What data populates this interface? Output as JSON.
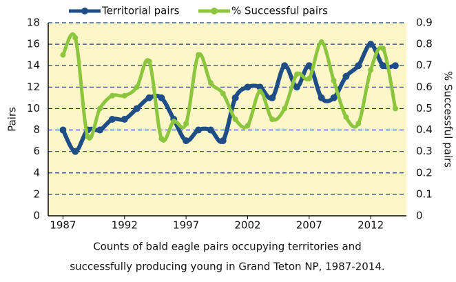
{
  "chart_data": {
    "type": "line",
    "x": [
      1987,
      1988,
      1989,
      1990,
      1991,
      1992,
      1993,
      1994,
      1995,
      1996,
      1997,
      1998,
      1999,
      2000,
      2001,
      2002,
      2003,
      2004,
      2005,
      2006,
      2007,
      2008,
      2009,
      2010,
      2011,
      2012,
      2013,
      2014
    ],
    "series": [
      {
        "name": "Territorial pairs",
        "color": "#1f4e86",
        "values": [
          8,
          6,
          8,
          8,
          9,
          9,
          10,
          11,
          11,
          9,
          7,
          8,
          8,
          7,
          11,
          12,
          12,
          11,
          14,
          12,
          14,
          11,
          11,
          13,
          14,
          16,
          14,
          14
        ]
      },
      {
        "name": "% Successful pairs",
        "color": "#8cc63f",
        "axis": "y2",
        "values": [
          0.75,
          0.83,
          0.37,
          0.5,
          0.56,
          0.56,
          0.6,
          0.72,
          0.36,
          0.44,
          0.43,
          0.75,
          0.62,
          0.57,
          0.45,
          0.42,
          0.58,
          0.45,
          0.5,
          0.66,
          0.64,
          0.81,
          0.63,
          0.46,
          0.43,
          0.68,
          0.78,
          0.5
        ]
      }
    ],
    "xlim": [
      1985.8,
      2014.9
    ],
    "xticks": [
      1987,
      1992,
      1997,
      2002,
      2007,
      2012
    ],
    "ylim": [
      0,
      18
    ],
    "yticks": [
      0,
      2,
      4,
      6,
      8,
      10,
      12,
      14,
      16,
      18
    ],
    "y2lim": [
      0,
      0.9
    ],
    "y2ticks": [
      0,
      0.1,
      0.2,
      0.3,
      0.4,
      0.5,
      0.6,
      0.7,
      0.8,
      0.9
    ],
    "ylabel": "Pairs",
    "y2label": "% Successful pairs",
    "caption": [
      "Counts of bald eagle pairs occupying territories and",
      "successfully producing young in Grand Teton NP, 1987-2014."
    ],
    "grid": true,
    "background": "#fdf6c9",
    "legend": "top"
  }
}
